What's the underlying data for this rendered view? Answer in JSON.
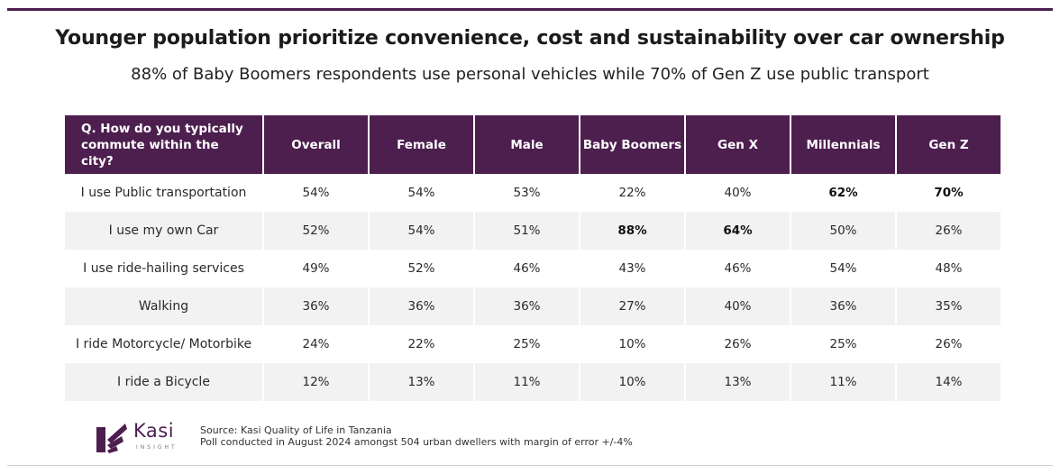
{
  "title": "Younger population prioritize convenience, cost and sustainability over car ownership",
  "subtitle": "88% of Baby Boomers respondents use personal vehicles while 70% of Gen Z use public transport",
  "chart_data": {
    "type": "table",
    "question": "Q. How do you typically commute within the city?",
    "columns": [
      "Overall",
      "Female",
      "Male",
      "Baby Boomers",
      "Gen X",
      "Millennials",
      "Gen Z"
    ],
    "rows": [
      {
        "label": "I use Public transportation",
        "values": [
          "54%",
          "54%",
          "53%",
          "22%",
          "40%",
          "62%",
          "70%"
        ],
        "bold": [
          5,
          6
        ]
      },
      {
        "label": "I use my own Car",
        "values": [
          "52%",
          "54%",
          "51%",
          "88%",
          "64%",
          "50%",
          "26%"
        ],
        "bold": [
          3,
          4
        ]
      },
      {
        "label": "I use ride-hailing services",
        "values": [
          "49%",
          "52%",
          "46%",
          "43%",
          "46%",
          "54%",
          "48%"
        ],
        "bold": []
      },
      {
        "label": "Walking",
        "values": [
          "36%",
          "36%",
          "36%",
          "27%",
          "40%",
          "36%",
          "35%"
        ],
        "bold": []
      },
      {
        "label": "I ride Motorcycle/ Motorbike",
        "values": [
          "24%",
          "22%",
          "25%",
          "10%",
          "26%",
          "25%",
          "26%"
        ],
        "bold": []
      },
      {
        "label": "I ride a Bicycle",
        "values": [
          "12%",
          "13%",
          "11%",
          "10%",
          "13%",
          "11%",
          "14%"
        ],
        "bold": []
      }
    ]
  },
  "brand": {
    "name": "Kasi",
    "tagline": "INSIGHT",
    "color": "#4d1f4f",
    "icon": "kasi-logo-icon"
  },
  "source": {
    "line1": "Source: Kasi Quality of Life in Tanzania",
    "line2": "Poll conducted in August 2024 amongst 504 urban dwellers with margin of error +/-4%"
  }
}
